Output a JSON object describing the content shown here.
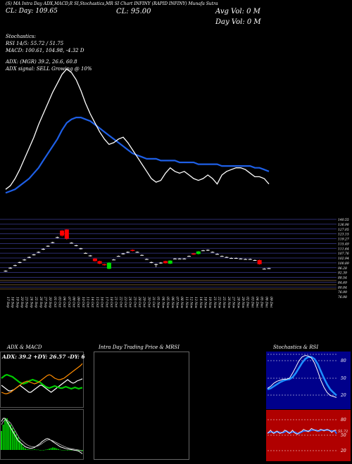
{
  "header": {
    "top_line": "(S) MA Intra Day ADX,MACD,R SI,Stochastics,MR SI Chart INFINY (RAPID INFINY) Munafa Sutra",
    "line2": "CL: Day: 109.65",
    "close": "CL: 95.00",
    "avg_vol": "Avg Vol: 0 M",
    "day_vol": "Day Vol: 0 M"
  },
  "indicators": {
    "stochastics": "Stochastics:",
    "rsi": "RSI 14/5: 55.72 / 51.75",
    "macd": "MACD: 100.61, 104.98, -4.32 D",
    "adx": "ADX: (MGR) 39.2, 26.6, 60.8",
    "adx_signal": "ADX signal: SELL Growing @ 10%"
  },
  "panels": {
    "adx_macd": "ADX & MACD",
    "intraday": "Intra Day Trading Price & MRSI",
    "stoch_rsi": "Stochastics & RSI"
  },
  "adx_readout": "ADX: 39.2 +DY: 26.57 -DY: 60.8",
  "stoch_ticks": [
    "80",
    "50",
    "20"
  ],
  "rsi_ticks": [
    "80",
    "50",
    "20"
  ],
  "rsi_value": "55.72",
  "colors": {
    "up": "#00dd00",
    "down": "#ff0000",
    "ma": "#1e5fe6",
    "price": "#ffffff"
  },
  "chart_data": {
    "type": "candlestick",
    "dates": [
      "17 Sep",
      "18 Sep",
      "19 Sep",
      "20 Sep",
      "23 Sep",
      "24 Sep",
      "25 Sep",
      "26 Sep",
      "27 Sep",
      "30 Sep",
      "01 Oct",
      "03 Oct",
      "04 Oct",
      "07 Oct",
      "08 Oct",
      "09 Oct",
      "10 Oct",
      "11 Oct",
      "14 Oct",
      "15 Oct",
      "16 Oct",
      "17 Oct",
      "18 Oct",
      "21 Oct",
      "22 Oct",
      "23 Oct",
      "24 Oct",
      "25 Oct",
      "28 Oct",
      "29 Oct",
      "30 Oct",
      "31 Oct",
      "01 Nov",
      "04 Nov",
      "05 Nov",
      "06 Nov",
      "07 Nov",
      "08 Nov",
      "11 Nov",
      "12 Nov",
      "13 Nov",
      "14 Nov",
      "18 Nov",
      "19 Nov",
      "21 Nov",
      "22 Nov",
      "25 Nov",
      "26 Nov",
      "27 Nov",
      "28 Nov",
      "29 Nov",
      "02 Dec",
      "03 Dec",
      "04 Dec",
      "05 Dec",
      "06 Dec",
      "09 Dec"
    ],
    "candles": [
      {
        "o": 92.5,
        "h": 93.0,
        "l": 91.5,
        "c": 92.0
      },
      {
        "o": 95.5,
        "h": 96.0,
        "l": 94.5,
        "c": 95.0
      },
      {
        "o": 98.0,
        "h": 98.5,
        "l": 97.0,
        "c": 97.5
      },
      {
        "o": 101.0,
        "h": 101.5,
        "l": 100.0,
        "c": 100.5
      },
      {
        "o": 103.5,
        "h": 104.0,
        "l": 102.5,
        "c": 103.0
      },
      {
        "o": 106.0,
        "h": 106.5,
        "l": 105.0,
        "c": 105.5
      },
      {
        "o": 108.5,
        "h": 109.0,
        "l": 107.5,
        "c": 108.0
      },
      {
        "o": 111.0,
        "h": 111.5,
        "l": 110.0,
        "c": 110.5
      },
      {
        "o": 114.0,
        "h": 114.5,
        "l": 113.0,
        "c": 113.5
      },
      {
        "o": 117.0,
        "h": 117.5,
        "l": 116.0,
        "c": 116.5
      },
      {
        "o": 120.5,
        "h": 121.0,
        "l": 119.5,
        "c": 120.0
      },
      {
        "o": 125.5,
        "h": 126.0,
        "l": 124.5,
        "c": 125.0
      },
      {
        "o": 132.0,
        "h": 132.5,
        "l": 126.0,
        "c": 127.0
      },
      {
        "o": 133.0,
        "h": 133.5,
        "l": 123.0,
        "c": 124.0
      },
      {
        "o": 120.0,
        "h": 120.5,
        "l": 119.5,
        "c": 120.0
      },
      {
        "o": 117.5,
        "h": 118.0,
        "l": 116.5,
        "c": 117.0
      },
      {
        "o": 114.5,
        "h": 115.0,
        "l": 113.5,
        "c": 114.0
      },
      {
        "o": 110.0,
        "h": 110.5,
        "l": 109.5,
        "c": 110.0
      },
      {
        "o": 107.5,
        "h": 108.0,
        "l": 106.5,
        "c": 107.0
      },
      {
        "o": 104.5,
        "h": 105.0,
        "l": 101.5,
        "c": 102.0
      },
      {
        "o": 102.0,
        "h": 102.5,
        "l": 99.0,
        "c": 99.5
      },
      {
        "o": 99.0,
        "h": 99.5,
        "l": 97.5,
        "c": 98.0
      },
      {
        "o": 94.5,
        "h": 101.0,
        "l": 94.0,
        "c": 100.5
      },
      {
        "o": 103.5,
        "h": 104.0,
        "l": 103.0,
        "c": 103.5
      },
      {
        "o": 107.0,
        "h": 107.5,
        "l": 106.5,
        "c": 107.0
      },
      {
        "o": 109.5,
        "h": 110.0,
        "l": 108.5,
        "c": 109.5
      },
      {
        "o": 111.0,
        "h": 111.5,
        "l": 110.0,
        "c": 110.5
      },
      {
        "o": 113.0,
        "h": 113.5,
        "l": 111.5,
        "c": 112.0
      },
      {
        "o": 111.0,
        "h": 111.5,
        "l": 110.5,
        "c": 111.0
      },
      {
        "o": 108.0,
        "h": 108.5,
        "l": 107.5,
        "c": 108.0
      },
      {
        "o": 104.0,
        "h": 104.5,
        "l": 103.5,
        "c": 104.0
      },
      {
        "o": 101.0,
        "h": 101.5,
        "l": 100.0,
        "c": 100.5
      },
      {
        "o": 99.0,
        "h": 99.5,
        "l": 96.0,
        "c": 99.0
      },
      {
        "o": 100.0,
        "h": 101.0,
        "l": 99.5,
        "c": 100.5
      },
      {
        "o": 102.0,
        "h": 102.5,
        "l": 99.5,
        "c": 100.0
      },
      {
        "o": 99.5,
        "h": 103.0,
        "l": 99.0,
        "c": 102.5
      },
      {
        "o": 104.5,
        "h": 105.0,
        "l": 104.0,
        "c": 104.5
      },
      {
        "o": 104.5,
        "h": 105.0,
        "l": 104.0,
        "c": 104.5
      },
      {
        "o": 104.5,
        "h": 105.0,
        "l": 104.0,
        "c": 104.5
      },
      {
        "o": 107.0,
        "h": 107.5,
        "l": 106.5,
        "c": 107.0
      },
      {
        "o": 109.5,
        "h": 110.0,
        "l": 108.0,
        "c": 108.5
      },
      {
        "o": 109.0,
        "h": 112.0,
        "l": 108.5,
        "c": 111.5
      },
      {
        "o": 112.5,
        "h": 113.0,
        "l": 112.0,
        "c": 112.5
      },
      {
        "o": 113.0,
        "h": 113.5,
        "l": 112.0,
        "c": 112.5
      },
      {
        "o": 111.0,
        "h": 111.5,
        "l": 110.5,
        "c": 111.0
      },
      {
        "o": 109.0,
        "h": 109.5,
        "l": 108.5,
        "c": 109.0
      },
      {
        "o": 107.0,
        "h": 107.5,
        "l": 106.5,
        "c": 107.0
      },
      {
        "o": 106.0,
        "h": 106.5,
        "l": 105.5,
        "c": 106.0
      },
      {
        "o": 105.0,
        "h": 105.5,
        "l": 104.5,
        "c": 105.0
      },
      {
        "o": 105.0,
        "h": 105.5,
        "l": 104.5,
        "c": 105.0
      },
      {
        "o": 104.5,
        "h": 105.0,
        "l": 104.0,
        "c": 104.5
      },
      {
        "o": 104.0,
        "h": 104.5,
        "l": 103.5,
        "c": 104.0
      },
      {
        "o": 104.0,
        "h": 104.5,
        "l": 103.5,
        "c": 104.0
      },
      {
        "o": 103.0,
        "h": 103.5,
        "l": 102.5,
        "c": 103.0
      },
      {
        "o": 103.0,
        "h": 103.5,
        "l": 98.5,
        "c": 99.0
      },
      {
        "o": 94.5,
        "h": 95.0,
        "l": 94.0,
        "c": 94.5
      },
      {
        "o": 95.0,
        "h": 95.5,
        "l": 94.5,
        "c": 95.0
      }
    ],
    "price_ticks": [
      "140.55",
      "136.98",
      "127.05",
      "123.15",
      "119.27",
      "115.49",
      "111.64",
      "107.76",
      "102.94",
      "100.89",
      "96.28",
      "92.39",
      "88.54",
      "84.69",
      "80.84",
      "76.99",
      "76.98"
    ],
    "price_range": [
      74,
      143
    ],
    "white_line": [
      52,
      54,
      58,
      63,
      69,
      75,
      81,
      88,
      94,
      100,
      106,
      111,
      116,
      119,
      117,
      113,
      107,
      100,
      94,
      89,
      84,
      80,
      77,
      78,
      80,
      81,
      78,
      74,
      70,
      66,
      62,
      58,
      56,
      57,
      61,
      64,
      62,
      61,
      62,
      60,
      58,
      57,
      58,
      60,
      58,
      55,
      60,
      62,
      63,
      64,
      64,
      63,
      61,
      59,
      59,
      58,
      55
    ],
    "blue_line": [
      50,
      51,
      52,
      54,
      56,
      58,
      61,
      64,
      68,
      72,
      76,
      80,
      85,
      89,
      91,
      92,
      92,
      91,
      90,
      88,
      86,
      84,
      82,
      80,
      78,
      76,
      74,
      72,
      71,
      70,
      69,
      69,
      69,
      68,
      68,
      68,
      68,
      67,
      67,
      67,
      67,
      66,
      66,
      66,
      66,
      66,
      65,
      65,
      65,
      65,
      65,
      65,
      65,
      64,
      64,
      63,
      62
    ],
    "line_range": [
      40,
      130
    ],
    "adx": [
      30,
      28,
      26,
      24,
      22,
      22,
      23,
      24,
      26,
      28,
      30,
      28,
      26,
      24,
      22,
      20,
      20,
      22,
      24,
      26,
      28,
      30,
      30,
      28,
      26,
      24,
      22,
      20,
      22,
      24,
      26,
      28,
      30,
      32,
      34,
      36,
      38,
      36,
      34,
      33,
      34,
      36,
      37,
      38,
      39.2
    ],
    "plus_di": [
      40,
      42,
      44,
      45,
      44,
      43,
      42,
      40,
      38,
      36,
      34,
      33,
      32,
      33,
      34,
      36,
      37,
      38,
      37,
      36,
      35,
      34,
      32,
      30,
      28,
      27,
      26,
      27,
      28,
      29,
      28,
      27,
      26,
      26,
      27,
      28,
      27,
      26,
      25,
      26,
      27,
      26,
      25,
      26,
      26.57
    ],
    "minus_di": [
      20,
      19,
      18,
      18,
      19,
      20,
      22,
      24,
      26,
      28,
      30,
      32,
      34,
      35,
      36,
      35,
      34,
      33,
      32,
      33,
      34,
      36,
      38,
      40,
      42,
      44,
      45,
      44,
      42,
      40,
      39,
      38,
      38,
      39,
      40,
      42,
      44,
      46,
      48,
      50,
      52,
      54,
      56,
      58,
      60.8
    ],
    "macd_hist": [
      6,
      8,
      10,
      10,
      9,
      8,
      7,
      6,
      5,
      4,
      3,
      2,
      1,
      0.5,
      0.3,
      0.2,
      0.1,
      0.1,
      0.2,
      0.1,
      0.1,
      0,
      -0.1,
      0,
      0.1,
      0.2,
      0.4,
      0.6,
      0.8,
      0.7,
      0.5,
      0.3,
      0.1,
      0,
      0,
      -0.1,
      -0.2,
      -0.1,
      0,
      -0.1,
      -0.2,
      -0.3,
      -0.4,
      -0.3,
      -0.4
    ],
    "macd_line": [
      9,
      10,
      10,
      9,
      8,
      7,
      6,
      5,
      4,
      3,
      2.5,
      2,
      1.5,
      1,
      0.8,
      0.6,
      0.5,
      0.6,
      0.8,
      1.2,
      1.6,
      2,
      2.6,
      3,
      3.4,
      3.6,
      3.4,
      3,
      2.6,
      2.2,
      1.8,
      1.4,
      1,
      0.8,
      0.6,
      0.4,
      0.3,
      0.2,
      0.1,
      0,
      -0.1,
      -0.2,
      -0.4,
      -0.8,
      -1.2
    ],
    "macd_signal": [
      8,
      9,
      9.5,
      9.5,
      9,
      8.5,
      7.5,
      6.5,
      5.5,
      4.5,
      3.5,
      3,
      2.5,
      2,
      1.6,
      1.3,
      1.1,
      1,
      1,
      1.1,
      1.3,
      1.6,
      2,
      2.4,
      2.8,
      3.1,
      3.2,
      3.1,
      2.9,
      2.6,
      2.3,
      2,
      1.7,
      1.4,
      1.1,
      0.9,
      0.7,
      0.5,
      0.4,
      0.3,
      0.2,
      0.1,
      0,
      -0.2,
      -0.4
    ],
    "stoch_k": [
      30,
      34,
      40,
      44,
      46,
      48,
      48,
      50,
      60,
      72,
      84,
      92,
      95,
      94,
      90,
      80,
      64,
      46,
      32,
      22,
      16,
      14,
      12
    ],
    "stoch_d": [
      28,
      30,
      34,
      38,
      42,
      45,
      47,
      48,
      52,
      60,
      70,
      80,
      88,
      92,
      92,
      88,
      78,
      64,
      50,
      38,
      28,
      22,
      16
    ],
    "rsi_series": [
      52,
      54,
      56,
      53,
      52,
      54,
      55,
      53,
      52,
      53,
      54,
      56,
      55,
      53,
      52,
      54,
      56,
      53,
      52,
      51,
      53,
      54,
      55,
      57,
      56,
      55,
      54,
      56,
      58,
      57,
      56,
      55,
      55,
      56,
      57,
      56,
      55,
      56,
      57,
      56,
      55,
      53,
      55,
      56,
      55.72
    ],
    "rsi_signal": [
      53,
      53,
      54,
      54,
      53,
      53,
      54,
      54,
      53,
      53,
      53,
      54,
      55,
      54,
      53,
      53,
      54,
      54,
      53,
      52,
      52,
      53,
      54,
      55,
      55,
      55,
      55,
      55,
      56,
      56,
      56,
      56,
      55,
      55,
      56,
      56,
      56,
      56,
      56,
      56,
      55,
      55,
      55,
      55,
      51.75
    ]
  }
}
